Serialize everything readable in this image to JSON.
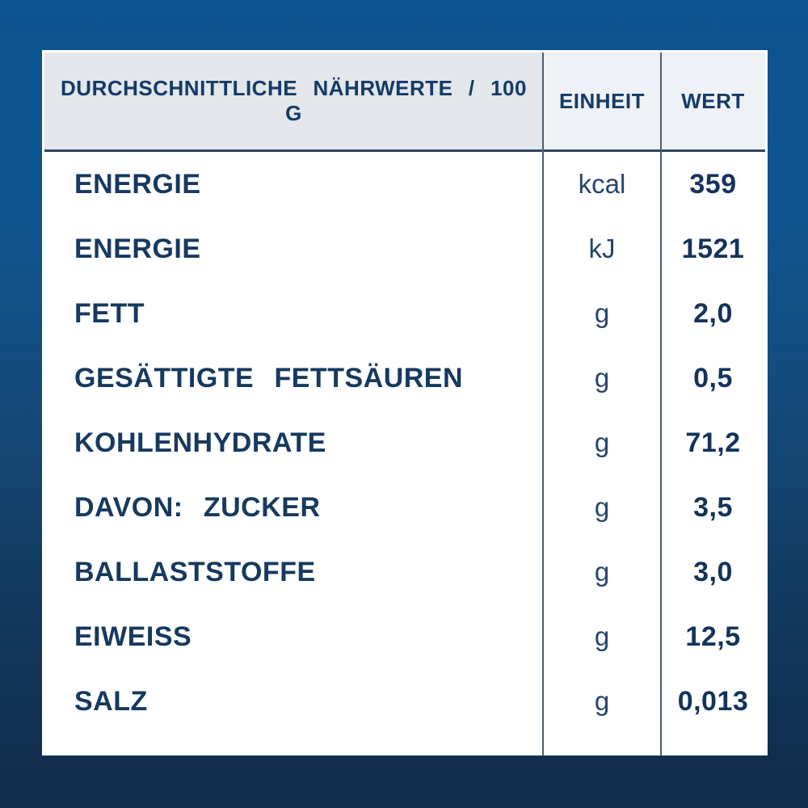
{
  "page": {
    "background_gradient_top": "#0b5391",
    "background_gradient_bottom": "#112b48",
    "card_background": "#ffffff",
    "header_col1_background": "#e3e7ec",
    "header_col23_background": "#eef1f5",
    "text_navy": "#16395f",
    "divider_color": "#4d5d70"
  },
  "table": {
    "header": {
      "col1": "DURCHSCHNITTLICHE NÄHRWERTE / 100 G",
      "col2": "EINHEIT",
      "col3": "WERT"
    },
    "rows": [
      {
        "label": "ENERGIE",
        "unit": "kcal",
        "value": "359"
      },
      {
        "label": "ENERGIE",
        "unit": "kJ",
        "value": "1521"
      },
      {
        "label": "FETT",
        "unit": "g",
        "value": "2,0"
      },
      {
        "label": "GESÄTTIGTE FETTSÄUREN",
        "unit": "g",
        "value": "0,5"
      },
      {
        "label": "KOHLENHYDRATE",
        "unit": "g",
        "value": "71,2"
      },
      {
        "label": "DAVON: ZUCKER",
        "unit": "g",
        "value": "3,5"
      },
      {
        "label": "BALLASTSTOFFE",
        "unit": "g",
        "value": "3,0"
      },
      {
        "label": "EIWEISS",
        "unit": "g",
        "value": "12,5"
      },
      {
        "label": "SALZ",
        "unit": "g",
        "value": "0,013"
      }
    ]
  },
  "chart_data": {
    "type": "table",
    "title": "DURCHSCHNITTLICHE NÄHRWERTE / 100 G",
    "columns": [
      "DURCHSCHNITTLICHE NÄHRWERTE / 100 G",
      "EINHEIT",
      "WERT"
    ],
    "rows": [
      [
        "ENERGIE",
        "kcal",
        "359"
      ],
      [
        "ENERGIE",
        "kJ",
        "1521"
      ],
      [
        "FETT",
        "g",
        "2,0"
      ],
      [
        "GESÄTTIGTE FETTSÄUREN",
        "g",
        "0,5"
      ],
      [
        "KOHLENHYDRATE",
        "g",
        "71,2"
      ],
      [
        "DAVON: ZUCKER",
        "g",
        "3,5"
      ],
      [
        "BALLASTSTOFFE",
        "g",
        "3,0"
      ],
      [
        "EIWEISS",
        "g",
        "12,5"
      ],
      [
        "SALZ",
        "g",
        "0,013"
      ]
    ]
  }
}
